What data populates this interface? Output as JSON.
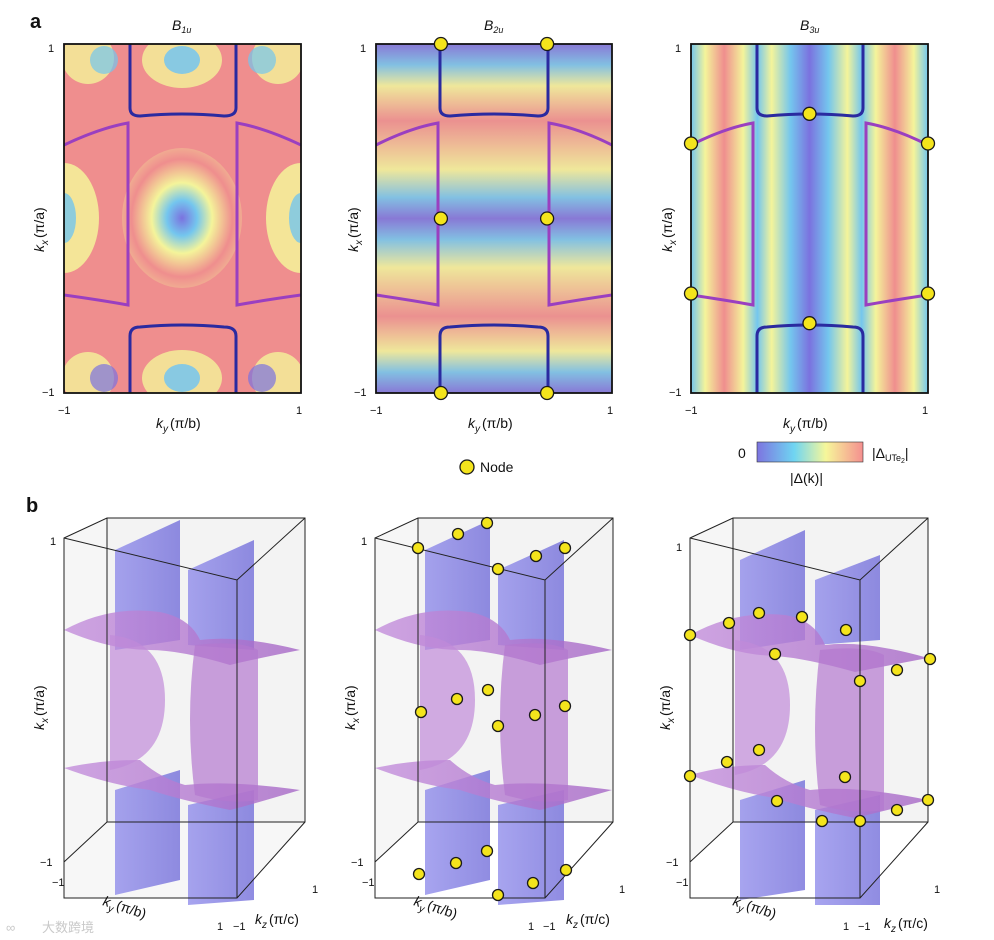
{
  "figure": {
    "panel_a": {
      "label": "a",
      "titles": [
        {
          "main": "B",
          "sub": "1u"
        },
        {
          "main": "B",
          "sub": "2u"
        },
        {
          "main": "B",
          "sub": "3u"
        }
      ],
      "y_axis": {
        "var": "k",
        "sub": "x",
        "unit": "(π/a)",
        "tick_top": "1",
        "tick_bottom": "−1"
      },
      "x_axis": {
        "var": "k",
        "sub": "y",
        "unit": "(π/b)",
        "tick_left": "−1",
        "tick_right": "1"
      },
      "legend_node": "Node",
      "colorbar": {
        "min_label": "0",
        "max_label_main": "|Δ",
        "max_label_sub": "UTe",
        "max_label_sub2": "2",
        "max_label_end": "|",
        "caption": "|Δ(k)|",
        "colors": [
          "#7d74e0",
          "#6fd5f2",
          "#f6f79a",
          "#f58f8f"
        ]
      },
      "map_colors": {
        "low": "#7b72df",
        "c2": "#74c6ee",
        "c3": "#f4f49a",
        "high": "#ef8e8e"
      },
      "band_colors": {
        "purple": "#9a3fc0",
        "blue": "#2a2aa0"
      },
      "nodes": {
        "B1u": [],
        "B2u": [
          [
            -0.45,
            1.0
          ],
          [
            0.45,
            1.0
          ],
          [
            -0.45,
            0.0
          ],
          [
            0.45,
            0.0
          ],
          [
            -0.45,
            -1.0
          ],
          [
            0.45,
            -1.0
          ]
        ],
        "B3u": [
          [
            0.0,
            0.6
          ],
          [
            0.0,
            -0.6
          ],
          [
            -1.0,
            0.43
          ],
          [
            1.0,
            0.43
          ],
          [
            -1.0,
            -0.43
          ],
          [
            1.0,
            -0.43
          ]
        ]
      }
    },
    "panel_b": {
      "label": "b",
      "y_axis": {
        "var": "k",
        "sub": "x",
        "unit": "(π/a)",
        "tick_top": "1",
        "tick_bottom": "−1"
      },
      "x_axis": {
        "var": "k",
        "sub": "y",
        "unit": "(π/b)",
        "tick_left": "−1",
        "tick_right": "1"
      },
      "z_axis": {
        "var": "k",
        "sub": "z",
        "unit": "(π/c)",
        "tick_left": "−1",
        "tick_right": "1"
      },
      "surface_colors": {
        "purple": "#b77ad0",
        "blue": "#7f7be6"
      }
    },
    "watermark": "大数跨境"
  }
}
